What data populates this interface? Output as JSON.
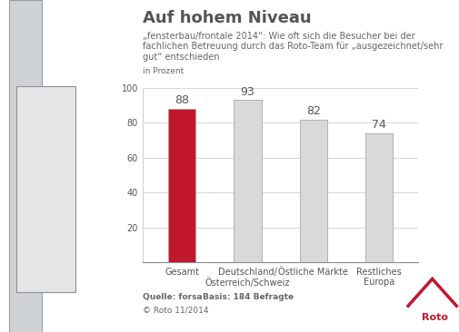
{
  "chart_data": {
    "type": "bar",
    "title": "Auf hohem Niveau",
    "subtitle": "„fensterbau/frontale 2014“: Wie oft sich die Besucher bei der fachlichen Betreuung durch das Roto-Team für „ausgezeichnet/sehr gut“ entschieden",
    "y_label": "in Prozent",
    "categories": [
      "Gesamt",
      "Deutschland/\nÖsterreich/Schweiz",
      "Östliche Märkte",
      "Restliches\nEuropa"
    ],
    "values": [
      88,
      93,
      82,
      74
    ],
    "colors": [
      "#c0172c",
      "#d9d9d9",
      "#d9d9d9",
      "#d9d9d9"
    ],
    "ylim": [
      0,
      100
    ],
    "yticks": [
      20,
      40,
      60,
      80,
      100
    ],
    "grid": true,
    "data_labels": true,
    "source": "Quelle: forsa",
    "base": "Basis: 184 Befragte",
    "copyright": "© Roto 11/2014",
    "logo": "Roto"
  }
}
